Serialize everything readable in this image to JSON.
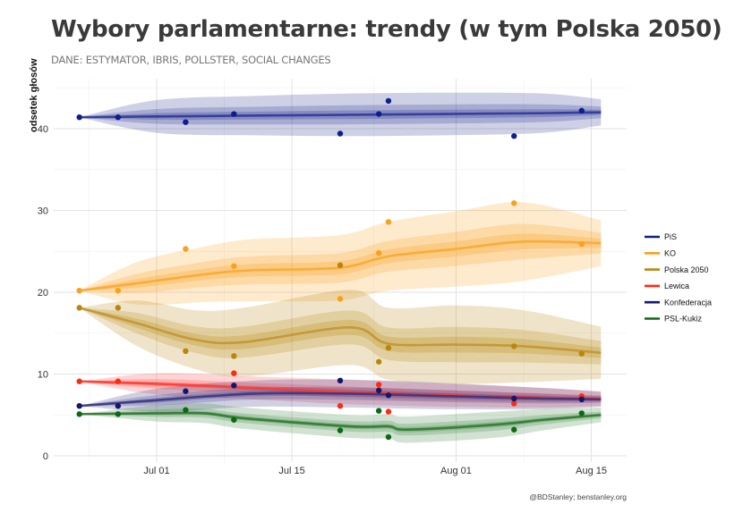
{
  "chart_data": {
    "type": "line",
    "title": "Wybory parlamentarne: trendy (w tym Polska 2050)",
    "subtitle": "DANE: ESTYMATOR, IBRIS,  POLLSTER, SOCIAL CHANGES",
    "ylabel": "odsetek głosów",
    "xlabel": "",
    "caption": "@BDStanley; benstanley.org",
    "x_unit": "days since Jul 01",
    "xlim": [
      -11,
      48
    ],
    "ylim": [
      0,
      46.5
    ],
    "x_ticks": [
      {
        "day": 0,
        "label": "Jul 01"
      },
      {
        "day": 14,
        "label": "Jul 15"
      },
      {
        "day": 31,
        "label": "Aug 01"
      },
      {
        "day": 45,
        "label": "Aug 15"
      }
    ],
    "x_minor_ticks": [
      -7,
      7,
      22.5,
      38
    ],
    "y_ticks": [
      0,
      10,
      20,
      30,
      40
    ],
    "y_minor_ticks": [
      5,
      15,
      25,
      35,
      45
    ],
    "grid": true,
    "legend_position": "right",
    "series": [
      {
        "name": "PiS",
        "color": "#0F1E8C",
        "line_color": "#2E3699",
        "band_color": "#1E2A8C",
        "trend": [
          [
            -8,
            41.4
          ],
          [
            0,
            41.5
          ],
          [
            10,
            41.6
          ],
          [
            20,
            41.7
          ],
          [
            30,
            41.8
          ],
          [
            40,
            41.9
          ],
          [
            46,
            42.0
          ]
        ],
        "band_outer": [
          0,
          2.0,
          2.4,
          2.6,
          2.6,
          2.4,
          1.6
        ],
        "points": [
          [
            -8,
            41.4
          ],
          [
            -4,
            41.4
          ],
          [
            3,
            40.8
          ],
          [
            8,
            41.8
          ],
          [
            19,
            39.4
          ],
          [
            23,
            41.8
          ],
          [
            24,
            43.4
          ],
          [
            37,
            39.1
          ],
          [
            44,
            42.2
          ]
        ]
      },
      {
        "name": "KO",
        "color": "#F9A11B",
        "line_color": "#F9A830",
        "band_color": "#F9A11B",
        "trend": [
          [
            -8,
            20.2
          ],
          [
            -2,
            21.1
          ],
          [
            5,
            22.2
          ],
          [
            10,
            22.7
          ],
          [
            19,
            23.0
          ],
          [
            24,
            24.4
          ],
          [
            31,
            25.3
          ],
          [
            38,
            26.2
          ],
          [
            46,
            26.0
          ]
        ],
        "band_outer": [
          0,
          2.6,
          3.4,
          3.8,
          4.0,
          4.2,
          4.6,
          4.8,
          2.8
        ],
        "points": [
          [
            -8,
            20.2
          ],
          [
            -4,
            20.2
          ],
          [
            3,
            25.3
          ],
          [
            8,
            23.2
          ],
          [
            19,
            19.2
          ],
          [
            23,
            24.8
          ],
          [
            24,
            28.6
          ],
          [
            37,
            30.9
          ],
          [
            44,
            25.9
          ]
        ]
      },
      {
        "name": "Polska 2050",
        "color": "#B8860B",
        "line_color": "#C29531",
        "band_color": "#B8860B",
        "trend": [
          [
            -8,
            18.1
          ],
          [
            -2,
            16.2
          ],
          [
            4,
            14.2
          ],
          [
            9,
            13.9
          ],
          [
            20,
            15.7
          ],
          [
            24,
            13.7
          ],
          [
            31,
            13.6
          ],
          [
            38,
            13.4
          ],
          [
            46,
            12.6
          ]
        ],
        "band_outer": [
          0,
          2.8,
          3.6,
          4.2,
          4.6,
          4.4,
          4.8,
          4.4,
          3.2
        ],
        "points": [
          [
            -8,
            18.1
          ],
          [
            -4,
            18.1
          ],
          [
            3,
            12.8
          ],
          [
            8,
            12.2
          ],
          [
            19,
            23.3
          ],
          [
            23,
            11.5
          ],
          [
            24,
            13.2
          ],
          [
            37,
            13.4
          ],
          [
            44,
            12.5
          ]
        ]
      },
      {
        "name": "Lewica",
        "color": "#FF2A12",
        "line_color": "#FF3B2A",
        "band_color": "#FF3B3B",
        "trend": [
          [
            -8,
            9.1
          ],
          [
            0,
            8.8
          ],
          [
            10,
            8.3
          ],
          [
            20,
            7.8
          ],
          [
            30,
            7.4
          ],
          [
            40,
            7.1
          ],
          [
            46,
            7.0
          ]
        ],
        "band_outer": [
          0,
          1.3,
          1.4,
          1.5,
          1.4,
          1.2,
          0.9
        ],
        "points": [
          [
            -8,
            9.1
          ],
          [
            -4,
            9.1
          ],
          [
            8,
            10.1
          ],
          [
            19,
            6.1
          ],
          [
            23,
            8.7
          ],
          [
            24,
            5.4
          ],
          [
            37,
            6.4
          ],
          [
            44,
            7.3
          ]
        ]
      },
      {
        "name": "Konfederacja",
        "color": "#14166E",
        "line_color": "#3B3580",
        "band_color": "#2A2A80",
        "trend": [
          [
            -8,
            6.1
          ],
          [
            0,
            6.8
          ],
          [
            10,
            7.6
          ],
          [
            20,
            7.6
          ],
          [
            30,
            7.3
          ],
          [
            40,
            7.0
          ],
          [
            46,
            6.9
          ]
        ],
        "band_outer": [
          0,
          1.4,
          1.6,
          1.7,
          1.6,
          1.3,
          0.9
        ],
        "points": [
          [
            -8,
            6.1
          ],
          [
            -4,
            6.1
          ],
          [
            3,
            7.9
          ],
          [
            8,
            8.6
          ],
          [
            19,
            9.2
          ],
          [
            23,
            8.0
          ],
          [
            24,
            7.4
          ],
          [
            37,
            7.0
          ],
          [
            44,
            6.9
          ]
        ]
      },
      {
        "name": "PSL-Kukiz",
        "color": "#0A6A12",
        "line_color": "#2E7A2E",
        "band_color": "#2E7D32",
        "trend": [
          [
            -8,
            5.1
          ],
          [
            0,
            5.2
          ],
          [
            5,
            5.2
          ],
          [
            9,
            4.6
          ],
          [
            20,
            3.6
          ],
          [
            24,
            3.6
          ],
          [
            26,
            3.2
          ],
          [
            35,
            3.8
          ],
          [
            40,
            4.4
          ],
          [
            46,
            5.0
          ]
        ],
        "band_outer": [
          0,
          1.0,
          1.2,
          1.3,
          1.4,
          1.5,
          1.6,
          1.6,
          1.3,
          0.9
        ],
        "points": [
          [
            -8,
            5.1
          ],
          [
            -4,
            5.1
          ],
          [
            3,
            5.6
          ],
          [
            8,
            4.4
          ],
          [
            19,
            3.1
          ],
          [
            23,
            5.5
          ],
          [
            24,
            2.3
          ],
          [
            37,
            3.2
          ],
          [
            44,
            5.2
          ]
        ]
      }
    ]
  }
}
